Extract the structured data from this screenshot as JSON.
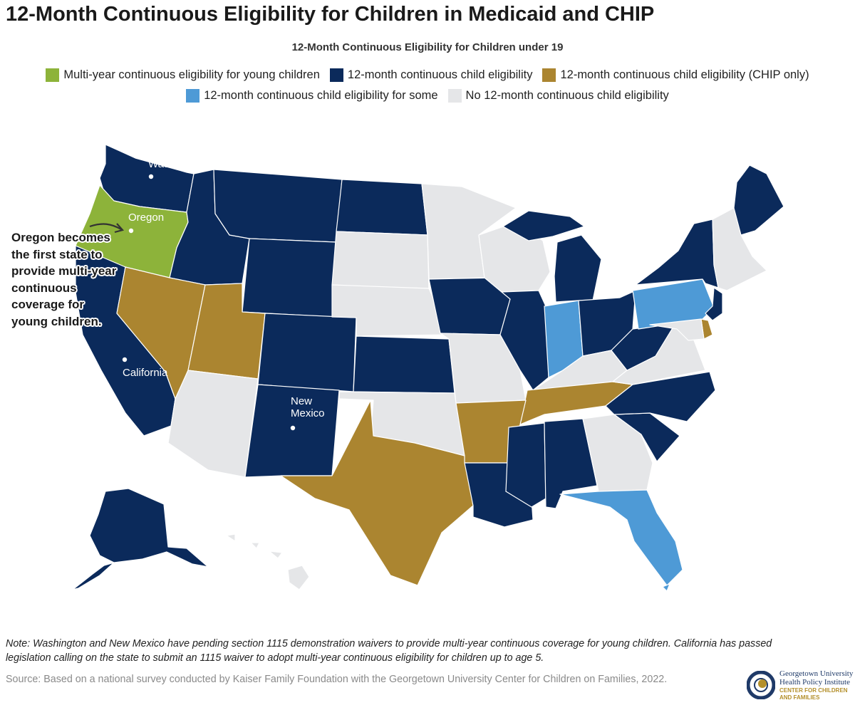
{
  "title": "12-Month Continuous Eligibility for Children in Medicaid and CHIP",
  "subtitle": "12-Month Continuous Eligibility for Children under 19",
  "legend": [
    {
      "label": "Multi-year continuous eligibility for young children",
      "color": "#8db33a"
    },
    {
      "label": "12-month continuous child eligibility",
      "color": "#0b2a5b"
    },
    {
      "label": "12-month continuous child eligibility (CHIP only)",
      "color": "#ab8530"
    },
    {
      "label": "12-month continuous child eligibility for some",
      "color": "#4e9ad6"
    },
    {
      "label": "No 12-month continuous child eligibility",
      "color": "#e5e6e8"
    }
  ],
  "map_labels": {
    "washington": "Washington",
    "oregon": "Oregon",
    "california": "California",
    "new_mexico_line1": "New",
    "new_mexico_line2": "Mexico"
  },
  "callout": "Oregon becomes the first state to provide multi-year continuous coverage for young children.",
  "note": "Note: Washington and New Mexico have pending section 1115 demonstration waivers to provide multi-year continuous coverage for young children. California has passed legislation calling on the state to submit an 1115 waiver to adopt multi-year continuous eligibility for children up to age 5.",
  "source": "Source: Based on a national survey conducted by Kaiser Family Foundation with the Georgetown University Center for Children on Families, 2022.",
  "logo": {
    "line1": "Georgetown University",
    "line2": "Health Policy Institute",
    "line3": "CENTER FOR CHILDREN",
    "line4": "AND FAMILIES"
  }
}
